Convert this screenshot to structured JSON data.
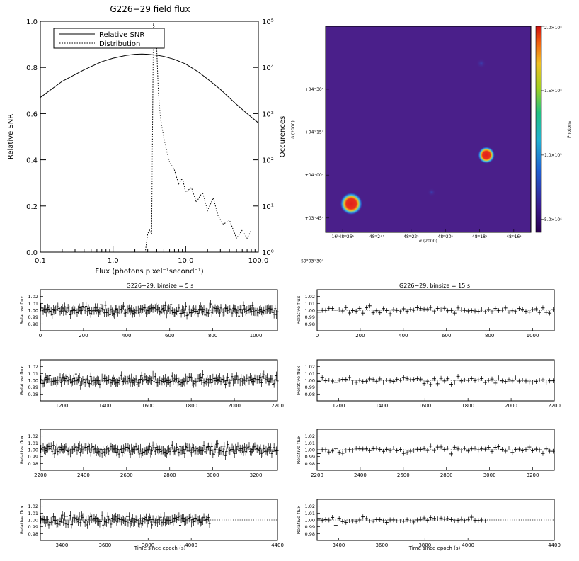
{
  "colors": {
    "axis": "#000000",
    "series": "#000000",
    "image_bg": "#4a1f8a",
    "source_hot": "#e0201a"
  },
  "chart_data": [
    {
      "id": "flux-distribution",
      "type": "line",
      "title": "G226−29 field flux",
      "xlabel": "Flux (photons pixel⁻¹second⁻¹)",
      "ylabel": "Relative SNR",
      "y2label": "Occurences",
      "x_scale": "log",
      "xlim": [
        0.1,
        100
      ],
      "ylim": [
        0,
        1
      ],
      "y2_scale": "log",
      "y2lim": [
        1,
        100000
      ],
      "x_ticks": [
        "0.1",
        "1.0",
        "10.0",
        "100.0"
      ],
      "y_ticks": [
        "0.0",
        "0.2",
        "0.4",
        "0.6",
        "0.8",
        "1.0"
      ],
      "y2_ticks": [
        "10⁰",
        "10¹",
        "10²",
        "10³",
        "10⁴",
        "10⁵"
      ],
      "legend": {
        "placement": "top-left",
        "entries": [
          "Relative SNR",
          "Distribution"
        ]
      },
      "series": [
        {
          "name": "Relative SNR",
          "style": "solid",
          "x": [
            0.1,
            0.2,
            0.4,
            0.7,
            1,
            1.5,
            2,
            2.5,
            3,
            4,
            5,
            7,
            10,
            15,
            20,
            30,
            50,
            70,
            100
          ],
          "y": [
            0.67,
            0.74,
            0.79,
            0.825,
            0.84,
            0.852,
            0.857,
            0.858,
            0.857,
            0.853,
            0.848,
            0.835,
            0.815,
            0.78,
            0.75,
            0.705,
            0.64,
            0.6,
            0.56
          ]
        },
        {
          "name": "Distribution",
          "style": "dotted",
          "axis": "right",
          "x": [
            2.8,
            3.0,
            3.2,
            3.4,
            3.6,
            3.8,
            4.0,
            4.2,
            4.5,
            5,
            5.5,
            6,
            7,
            8,
            9,
            10,
            12,
            14,
            17,
            20,
            24,
            28,
            33,
            40,
            50,
            60,
            70,
            80
          ],
          "y": [
            1.1,
            2.5,
            3,
            2.5,
            90000,
            60000,
            25000,
            3000,
            800,
            300,
            150,
            90,
            60,
            30,
            40,
            20,
            25,
            12,
            20,
            8,
            15,
            6,
            4,
            5,
            2,
            3,
            2,
            3
          ]
        }
      ]
    },
    {
      "id": "sky-image",
      "type": "heatmap",
      "xlabel": "α (2000)",
      "ylabel": "δ (2000)",
      "colorbar_label": "Photons",
      "colorbar_range": [
        40000,
        200000
      ],
      "colorbar_ticks": [
        "2.0×10⁵",
        "1.5×10⁵",
        "1.0×10⁵",
        "5.0×10⁴"
      ],
      "x_ticks": [
        "16ʰ48ᵐ26ˢ",
        "48ᵐ24ˢ",
        "48ᵐ22ˢ",
        "48ᵐ20ˢ",
        "48ᵐ18ˢ",
        "48ᵐ16ˢ"
      ],
      "y_ticks": [
        "+04ᵐ30ˢ",
        "+04ᵐ15ˢ",
        "+04ᵐ00ˢ",
        "+03ᵐ45ˢ",
        "+59°03ᵐ30ˢ"
      ],
      "sources": [
        {
          "name": "bright source",
          "ra_s": 25.5,
          "dec_s": 230,
          "peak": 200000
        },
        {
          "name": "second source",
          "ra_s": 17.6,
          "dec_s": 247,
          "peak": 200000
        },
        {
          "name": "faint source",
          "ra_s": 17.9,
          "dec_s": 279,
          "peak": 70000
        },
        {
          "name": "faint source",
          "ra_s": 20.8,
          "dec_s": 234,
          "peak": 60000
        }
      ]
    },
    {
      "id": "lightcurves",
      "type": "scatter",
      "columns": [
        {
          "title": "G226−29, binsize = 5 s",
          "binsize": 5
        },
        {
          "title": "G226−29, binsize = 15 s",
          "binsize": 15
        }
      ],
      "ylabel": "Relative flux",
      "xlabel": "Time since epoch (s)",
      "ylim": [
        0.97,
        1.03
      ],
      "y_ticks": [
        "0.98",
        "0.99",
        "1.00",
        "1.01",
        "1.02"
      ],
      "reference_level": 1.0,
      "data_end_time": 4090,
      "rows": [
        {
          "xlim": [
            0,
            1100
          ],
          "x_ticks": [
            "0",
            "200",
            "400",
            "600",
            "800",
            "1000"
          ]
        },
        {
          "xlim": [
            1100,
            2200
          ],
          "x_ticks": [
            "1200",
            "1400",
            "1600",
            "1800",
            "2000",
            "2200"
          ]
        },
        {
          "xlim": [
            2200,
            3300
          ],
          "x_ticks": [
            "2200",
            "2400",
            "2600",
            "2800",
            "3000",
            "3200"
          ]
        },
        {
          "xlim": [
            3300,
            4400
          ],
          "x_ticks": [
            "3400",
            "3600",
            "3800",
            "4000",
            "4400"
          ]
        }
      ],
      "noise_scatter": {
        "binsize_5": 0.012,
        "binsize_15": 0.009
      },
      "error_bar": {
        "binsize_5": 0.006,
        "binsize_15": 0.0035
      }
    }
  ]
}
